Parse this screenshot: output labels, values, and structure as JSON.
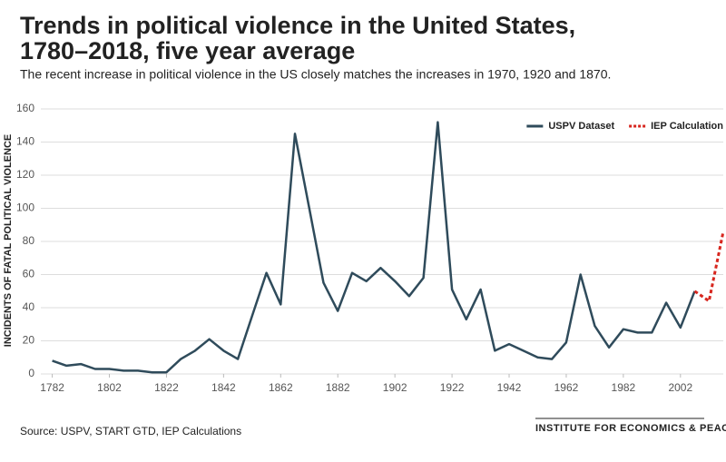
{
  "chart_data": {
    "type": "line",
    "title": [
      "Trends in political violence in the United States,",
      "1780–2018, five year average"
    ],
    "subtitle": "The recent increase in political violence in the US closely matches the increases in 1970, 1920 and 1870.",
    "y_label": "INCIDENTS OF FATAL POLITICAL VIOLENCE",
    "source": "Source: USPV, START GTD, IEP Calculations",
    "logo": "INSTITUTE FOR ECONOMICS & PEACE",
    "series": [
      {
        "name": "USPV Dataset",
        "color": "#2f4b5b",
        "style": "solid",
        "x": [
          1782,
          1787,
          1792,
          1797,
          1802,
          1807,
          1812,
          1817,
          1822,
          1827,
          1832,
          1837,
          1842,
          1847,
          1852,
          1857,
          1862,
          1867,
          1872,
          1877,
          1882,
          1887,
          1892,
          1897,
          1902,
          1907,
          1912,
          1917,
          1922,
          1927,
          1932,
          1937,
          1942,
          1947,
          1952,
          1957,
          1962,
          1967,
          1972,
          1977,
          1982,
          1987,
          1992,
          1997,
          2002,
          2007
        ],
        "values": [
          8,
          5,
          6,
          3,
          3,
          2,
          2,
          1,
          1,
          9,
          14,
          21,
          14,
          9,
          35,
          61,
          42,
          145,
          100,
          55,
          38,
          61,
          56,
          64,
          56,
          47,
          58,
          152,
          51,
          33,
          51,
          14,
          18,
          14,
          10,
          9,
          19,
          60,
          29,
          16,
          27,
          25,
          25,
          43,
          28,
          50
        ]
      },
      {
        "name": "IEP Calculation",
        "color": "#d7261e",
        "style": "dashed",
        "x": [
          2007,
          2012,
          2017
        ],
        "values": [
          50,
          44,
          86
        ]
      }
    ],
    "xlim": [
      1778,
      2017
    ],
    "xticks": [
      1782,
      1802,
      1822,
      1842,
      1862,
      1882,
      1902,
      1922,
      1942,
      1962,
      1982,
      2002
    ],
    "ylim": [
      0,
      160
    ],
    "yticks": [
      0,
      20,
      40,
      60,
      80,
      100,
      120,
      140,
      160
    ],
    "grid": true,
    "legend": "top-right"
  }
}
